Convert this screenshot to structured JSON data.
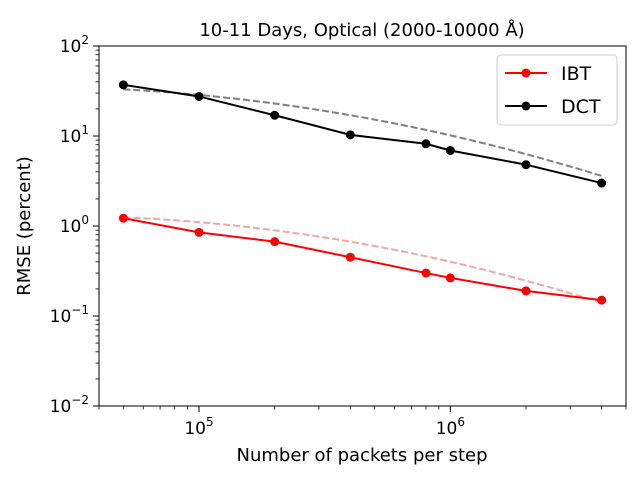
{
  "chart_data": {
    "type": "line",
    "title": "10-11 Days, Optical (2000-10000 Å)",
    "xlabel": "Number of packets per step",
    "ylabel": "RMSE (percent)",
    "xscale": "log",
    "yscale": "log",
    "xlim": [
      40000,
      5000000
    ],
    "ylim": [
      0.01,
      100
    ],
    "x_ticks": [
      {
        "value": 100000,
        "base": "10",
        "exp": "5"
      },
      {
        "value": 1000000,
        "base": "10",
        "exp": "6"
      }
    ],
    "y_ticks": [
      {
        "value": 0.01,
        "base": "10",
        "exp": "−2"
      },
      {
        "value": 0.1,
        "base": "10",
        "exp": "−1"
      },
      {
        "value": 1,
        "base": "10",
        "exp": "0"
      },
      {
        "value": 10,
        "base": "10",
        "exp": "1"
      },
      {
        "value": 100,
        "base": "10",
        "exp": "2"
      }
    ],
    "legend_position": "top-right",
    "grid": false,
    "series": [
      {
        "name": "IBT",
        "color": "#ff0000",
        "x": [
          50000,
          100000,
          200000,
          400000,
          800000,
          1000000,
          2000000,
          4000000
        ],
        "y": [
          1.22,
          0.85,
          0.67,
          0.45,
          0.3,
          0.265,
          0.19,
          0.15
        ],
        "fit_color": "#f4a6a6",
        "fit_y": [
          1.25,
          0.634,
          0.14
        ]
      },
      {
        "name": "DCT",
        "color": "#000000",
        "x": [
          50000,
          100000,
          200000,
          400000,
          800000,
          1000000,
          2000000,
          4000000
        ],
        "y": [
          37,
          27.5,
          17,
          10.3,
          8.2,
          6.9,
          4.8,
          3.0
        ],
        "fit_color": "#808080",
        "fit_y": [
          33,
          16.1,
          3.6
        ]
      }
    ]
  }
}
